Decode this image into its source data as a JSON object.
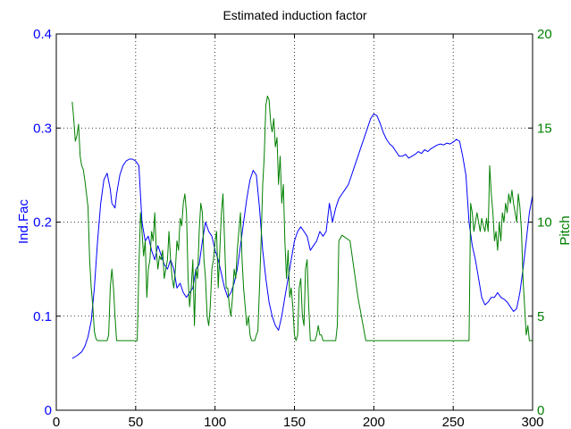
{
  "chart_data": {
    "type": "line",
    "title": "Estimated induction factor",
    "xlabel": "",
    "ylabel_left": "Ind.Fac",
    "ylabel_right": "Pitch",
    "xlim": [
      0,
      300
    ],
    "ylim_left": [
      0,
      0.4
    ],
    "ylim_right": [
      0,
      20
    ],
    "x_ticks": [
      "0",
      "50",
      "100",
      "150",
      "200",
      "250",
      "300"
    ],
    "y_left_ticks": [
      "0",
      "0.1",
      "0.2",
      "0.3",
      "0.4"
    ],
    "y_right_ticks": [
      "0",
      "5",
      "10",
      "15",
      "20"
    ],
    "grid": true,
    "colors": {
      "left": "#0000ff",
      "right": "#008000",
      "axis": "#000000"
    },
    "series": [
      {
        "axis": "left",
        "color": "#0000ff",
        "x": [
          10,
          13,
          16,
          18,
          20,
          22,
          24,
          26,
          28,
          30,
          32,
          34,
          35,
          37,
          38,
          40,
          42,
          44,
          46,
          48,
          50,
          52,
          54,
          56,
          58,
          60,
          62,
          64,
          66,
          68,
          70,
          72,
          74,
          76,
          78,
          80,
          82,
          84,
          86,
          88,
          90,
          92,
          94,
          96,
          98,
          100,
          102,
          104,
          106,
          108,
          110,
          112,
          114,
          116,
          118,
          120,
          122,
          124,
          126,
          128,
          130,
          132,
          134,
          136,
          138,
          140,
          142,
          144,
          146,
          148,
          150,
          152,
          154,
          156,
          158,
          160,
          162,
          164,
          166,
          168,
          170,
          172,
          173,
          174,
          176,
          178,
          180,
          182,
          184,
          186,
          188,
          190,
          192,
          194,
          196,
          198,
          200,
          202,
          204,
          206,
          208,
          210,
          212,
          214,
          216,
          218,
          220,
          222,
          224,
          226,
          228,
          230,
          232,
          234,
          236,
          238,
          240,
          242,
          244,
          246,
          248,
          250,
          252,
          254,
          256,
          258,
          260,
          262,
          264,
          266,
          268,
          270,
          272,
          274,
          276,
          278,
          280,
          282,
          284,
          286,
          288,
          290,
          292,
          294,
          296,
          298,
          300
        ],
        "values": [
          0.055,
          0.058,
          0.062,
          0.068,
          0.078,
          0.095,
          0.13,
          0.18,
          0.22,
          0.245,
          0.252,
          0.235,
          0.22,
          0.215,
          0.23,
          0.25,
          0.26,
          0.265,
          0.267,
          0.267,
          0.265,
          0.26,
          0.2,
          0.18,
          0.185,
          0.17,
          0.16,
          0.175,
          0.165,
          0.155,
          0.15,
          0.16,
          0.15,
          0.13,
          0.135,
          0.125,
          0.12,
          0.125,
          0.13,
          0.15,
          0.155,
          0.18,
          0.2,
          0.19,
          0.185,
          0.17,
          0.16,
          0.145,
          0.13,
          0.12,
          0.125,
          0.135,
          0.15,
          0.175,
          0.2,
          0.225,
          0.245,
          0.255,
          0.25,
          0.215,
          0.17,
          0.14,
          0.115,
          0.1,
          0.09,
          0.085,
          0.1,
          0.12,
          0.14,
          0.16,
          0.18,
          0.19,
          0.195,
          0.19,
          0.185,
          0.17,
          0.175,
          0.18,
          0.19,
          0.185,
          0.19,
          0.22,
          0.21,
          0.2,
          0.215,
          0.225,
          0.23,
          0.235,
          0.24,
          0.25,
          0.26,
          0.27,
          0.28,
          0.29,
          0.3,
          0.31,
          0.315,
          0.313,
          0.305,
          0.295,
          0.288,
          0.283,
          0.28,
          0.275,
          0.27,
          0.27,
          0.272,
          0.268,
          0.27,
          0.272,
          0.275,
          0.273,
          0.277,
          0.275,
          0.278,
          0.28,
          0.282,
          0.283,
          0.282,
          0.284,
          0.283,
          0.285,
          0.288,
          0.286,
          0.27,
          0.25,
          0.2,
          0.175,
          0.16,
          0.14,
          0.12,
          0.112,
          0.115,
          0.12,
          0.12,
          0.125,
          0.12,
          0.118,
          0.115,
          0.11,
          0.105,
          0.108,
          0.125,
          0.15,
          0.18,
          0.21,
          0.228
        ]
      },
      {
        "axis": "right",
        "color": "#008000",
        "x": [
          10,
          11,
          12,
          13,
          14,
          15,
          16,
          17,
          18,
          19,
          20,
          21,
          22,
          23,
          24,
          25,
          26,
          28,
          30,
          32,
          33,
          34,
          35,
          36,
          37,
          38,
          40,
          42,
          44,
          46,
          48,
          50,
          51,
          52,
          53,
          54,
          55,
          56,
          57,
          58,
          59,
          60,
          61,
          62,
          63,
          64,
          65,
          66,
          67,
          68,
          69,
          70,
          71,
          72,
          73,
          74,
          75,
          76,
          77,
          78,
          79,
          80,
          81,
          82,
          83,
          84,
          85,
          86,
          87,
          88,
          89,
          90,
          91,
          92,
          93,
          94,
          95,
          96,
          97,
          98,
          99,
          100,
          101,
          102,
          103,
          104,
          105,
          106,
          107,
          108,
          109,
          110,
          111,
          112,
          113,
          114,
          115,
          116,
          117,
          118,
          119,
          120,
          121,
          122,
          123,
          124,
          125,
          126,
          127,
          128,
          129,
          130,
          131,
          132,
          133,
          134,
          135,
          136,
          137,
          138,
          139,
          140,
          141,
          142,
          143,
          144,
          145,
          146,
          147,
          148,
          149,
          150,
          151,
          152,
          153,
          154,
          155,
          156,
          157,
          158,
          159,
          160,
          161,
          162,
          163,
          164,
          165,
          166,
          167,
          168,
          169,
          170,
          171,
          172,
          173,
          174,
          175,
          176,
          177,
          178,
          180,
          185,
          190,
          195,
          200,
          210,
          220,
          230,
          240,
          250,
          254,
          255,
          256,
          257,
          258,
          259,
          260,
          261,
          262,
          263,
          264,
          265,
          266,
          267,
          268,
          269,
          270,
          271,
          272,
          273,
          274,
          275,
          276,
          277,
          278,
          279,
          280,
          281,
          282,
          283,
          284,
          285,
          286,
          287,
          288,
          289,
          290,
          291,
          292,
          293,
          294,
          295,
          296,
          297,
          298,
          299,
          300
        ],
        "values": [
          16.4,
          15.5,
          14.3,
          14.6,
          15.2,
          13.5,
          13.0,
          12.8,
          12.2,
          11.5,
          10.8,
          8.0,
          6.5,
          5.5,
          4.2,
          3.8,
          3.7,
          3.7,
          3.7,
          3.7,
          4.0,
          6.5,
          7.5,
          6.5,
          5.0,
          3.7,
          3.7,
          3.7,
          3.7,
          3.7,
          3.7,
          3.7,
          3.7,
          7.5,
          10.5,
          9.5,
          8.2,
          9.0,
          6.0,
          7.5,
          8.0,
          9.5,
          9.0,
          10.5,
          8.5,
          7.5,
          8.2,
          8.0,
          8.5,
          7.0,
          7.5,
          8.0,
          9.5,
          8.0,
          7.0,
          6.5,
          7.5,
          9.0,
          8.5,
          10.2,
          9.8,
          11.0,
          11.5,
          10.5,
          7.0,
          5.5,
          6.5,
          8.0,
          4.5,
          7.5,
          7.0,
          9.5,
          11.0,
          10.5,
          8.0,
          7.0,
          5.0,
          4.5,
          5.5,
          7.5,
          8.0,
          9.0,
          9.5,
          6.5,
          8.5,
          10.5,
          11.5,
          9.0,
          6.5,
          6.5,
          5.5,
          5.0,
          6.0,
          7.5,
          7.0,
          8.5,
          9.5,
          10.5,
          8.0,
          6.5,
          5.5,
          4.5,
          5.0,
          4.0,
          3.7,
          3.7,
          3.7,
          4.0,
          4.2,
          6.5,
          9.0,
          12.0,
          13.5,
          16.2,
          16.7,
          16.5,
          15.3,
          14.8,
          15.5,
          14.0,
          14.5,
          12.0,
          13.5,
          11.0,
          12.0,
          9.0,
          7.0,
          8.5,
          6.0,
          6.5,
          5.5,
          4.0,
          3.7,
          4.0,
          6.5,
          7.0,
          5.0,
          4.5,
          7.5,
          8.0,
          5.5,
          3.7,
          3.7,
          3.7,
          3.7,
          4.0,
          4.5,
          4.0,
          4.0,
          3.7,
          3.7,
          3.7,
          3.7,
          3.7,
          3.7,
          3.7,
          3.7,
          3.7,
          4.5,
          9.0,
          9.3,
          9.0,
          6.0,
          3.7,
          3.7,
          3.7,
          3.7,
          3.7,
          3.7,
          3.7,
          3.7,
          3.7,
          3.7,
          3.7,
          3.7,
          3.7,
          3.7,
          11.0,
          10.5,
          9.5,
          10.0,
          10.5,
          10.0,
          9.5,
          10.2,
          9.8,
          9.5,
          10.2,
          9.5,
          13.0,
          11.5,
          10.5,
          9.0,
          9.5,
          8.5,
          10.0,
          9.0,
          10.5,
          10.0,
          11.0,
          10.5,
          11.5,
          11.0,
          11.7,
          11.0,
          10.5,
          10.0,
          11.5,
          10.8,
          9.5,
          7.0,
          5.5,
          4.0,
          4.5,
          3.7,
          3.7,
          3.7
        ]
      }
    ]
  }
}
